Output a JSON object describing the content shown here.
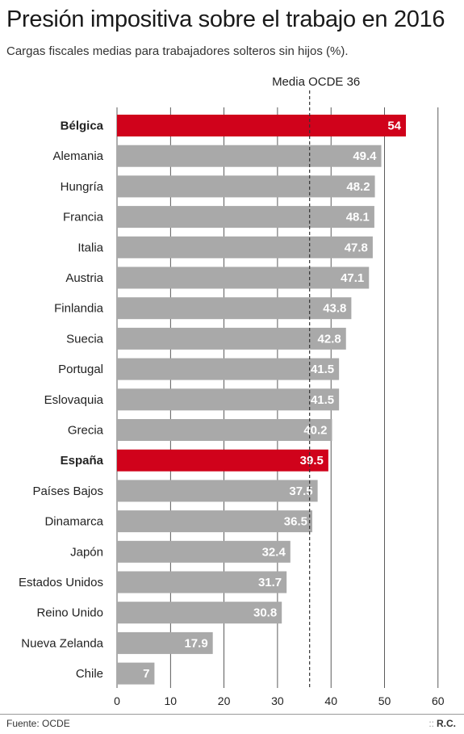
{
  "title": "Presión impositiva sobre el trabajo en 2016",
  "subtitle": "Cargas fiscales medias para trabajadores solteros sin hijos (%).",
  "source": "Fuente: OCDE",
  "credit": "R.C.",
  "credit_dots": "::",
  "colors": {
    "highlight": "#d0021b",
    "bar": "#a9a9a9",
    "grid": "#333333",
    "bar_label": "#ffffff"
  },
  "chart_data": {
    "type": "bar",
    "orientation": "horizontal",
    "categories": [
      "Bélgica",
      "Alemania",
      "Hungría",
      "Francia",
      "Italia",
      "Austria",
      "Finlandia",
      "Suecia",
      "Portugal",
      "Eslovaquia",
      "Grecia",
      "España",
      "Países Bajos",
      "Dinamarca",
      "Japón",
      "Estados Unidos",
      "Reino Unido",
      "Nueva Zelanda",
      "Chile"
    ],
    "values": [
      54,
      49.4,
      48.2,
      48.1,
      47.8,
      47.1,
      43.8,
      42.8,
      41.5,
      41.5,
      40.2,
      39.5,
      37.5,
      36.5,
      32.4,
      31.7,
      30.8,
      17.9,
      7
    ],
    "value_labels": [
      "54",
      "49.4",
      "48.2",
      "48.1",
      "47.8",
      "47.1",
      "43.8",
      "42.8",
      "41.5",
      "41.5",
      "40.2",
      "39.5",
      "37.5",
      "36.5",
      "32.4",
      "31.7",
      "30.8",
      "17.9",
      "7"
    ],
    "highlighted": [
      "Bélgica",
      "España"
    ],
    "xlim": [
      0,
      60
    ],
    "xticks": [
      0,
      10,
      20,
      30,
      40,
      50,
      60
    ],
    "grid": true,
    "reference_line": {
      "value": 36,
      "label": "Media OCDE 36"
    }
  }
}
